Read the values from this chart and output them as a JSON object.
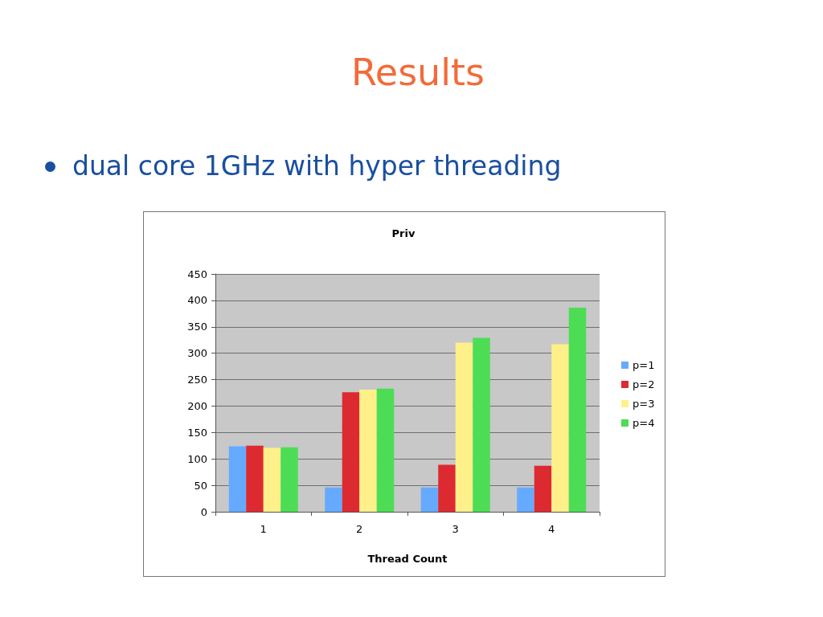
{
  "chart_data": {
    "type": "bar",
    "title": "Priv",
    "xlabel": "Thread Count",
    "annotations": [
      "Results",
      "dual core 1GHz with hyper threading"
    ],
    "categories": [
      "1",
      "2",
      "3",
      "4"
    ],
    "series": [
      {
        "name": "p=1",
        "color": "#66aaff",
        "values": [
          124,
          46,
          46,
          46
        ]
      },
      {
        "name": "p=2",
        "color": "#dd2a30",
        "values": [
          125,
          226,
          89,
          87
        ]
      },
      {
        "name": "p=3",
        "color": "#fff08a",
        "values": [
          121,
          231,
          320,
          317
        ]
      },
      {
        "name": "p=4",
        "color": "#4ddd55",
        "values": [
          122,
          233,
          329,
          386
        ]
      }
    ],
    "ylim": [
      0,
      450
    ],
    "yticks": [
      0,
      50,
      100,
      150,
      200,
      250,
      300,
      350,
      400,
      450
    ],
    "grid": "y",
    "legend": "right"
  }
}
